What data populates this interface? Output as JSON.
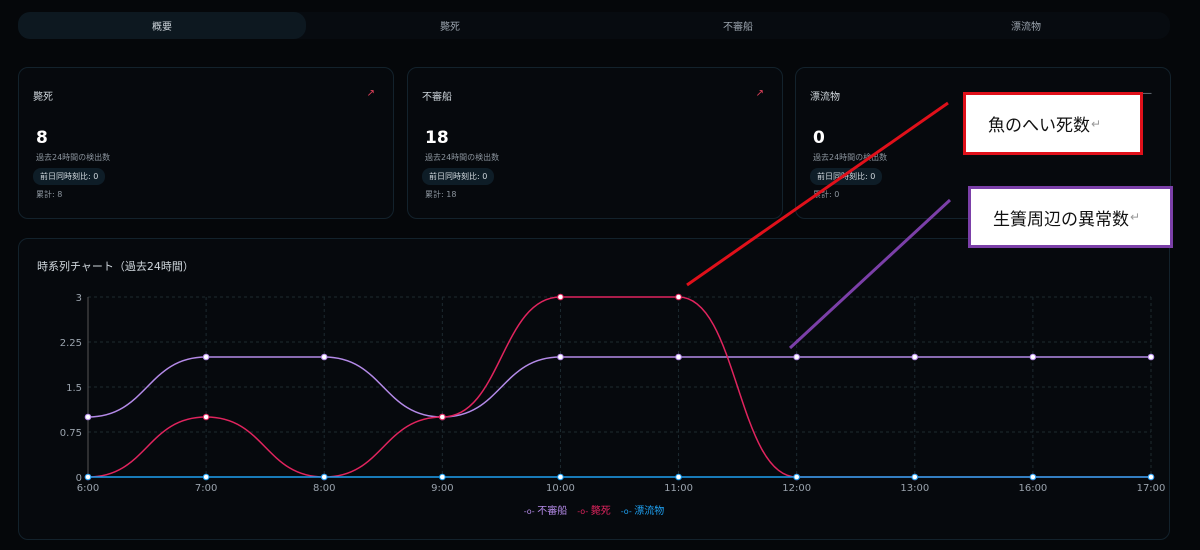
{
  "tabs": [
    {
      "label": "概要",
      "active": true
    },
    {
      "label": "斃死"
    },
    {
      "label": "不審船"
    },
    {
      "label": "漂流物"
    }
  ],
  "cards": [
    {
      "title": "斃死",
      "value": "8",
      "subtitle": "過去24時間の検出数",
      "badge": "前日同時刻比: 0",
      "total": "累計: 8",
      "icon": "trend-up-icon",
      "icon_color": "#e0405a"
    },
    {
      "title": "不審船",
      "value": "18",
      "subtitle": "過去24時間の検出数",
      "badge": "前日同時刻比: 0",
      "total": "累計: 18",
      "icon": "trend-up-icon",
      "icon_color": "#e0405a"
    },
    {
      "title": "漂流物",
      "value": "0",
      "subtitle": "過去24時間の検出数",
      "badge": "前日同時刻比: 0",
      "total": "累計: 0",
      "icon": "minus-icon",
      "icon_color": "#8b949d"
    }
  ],
  "chart_title": "時系列チャート（過去24時間）",
  "chart_data": {
    "type": "line",
    "categories": [
      "6:00",
      "7:00",
      "8:00",
      "9:00",
      "10:00",
      "11:00",
      "12:00",
      "13:00",
      "16:00",
      "17:00"
    ],
    "ylim": [
      0,
      3
    ],
    "yticks": [
      "0",
      "0.75",
      "1.5",
      "2.25",
      "3"
    ],
    "grid": true,
    "legend_position": "bottom",
    "series": [
      {
        "name": "不審船",
        "color": "#b48ae8",
        "values": [
          1,
          2,
          2,
          1,
          2,
          2,
          2,
          2,
          2,
          2
        ]
      },
      {
        "name": "斃死",
        "color": "#e0245e",
        "values": [
          0,
          1,
          0,
          1,
          3,
          3,
          0,
          0,
          0,
          0
        ]
      },
      {
        "name": "漂流物",
        "color": "#1ea0f0",
        "values": [
          0,
          0,
          0,
          0,
          0,
          0,
          0,
          0,
          0,
          0
        ]
      }
    ]
  },
  "annotations": [
    {
      "text": "魚のへい死数",
      "return_mark": "↵",
      "color": "#e0101a"
    },
    {
      "text": "生簀周辺の異常数",
      "return_mark": "↵",
      "color": "#7b3fa8"
    }
  ]
}
